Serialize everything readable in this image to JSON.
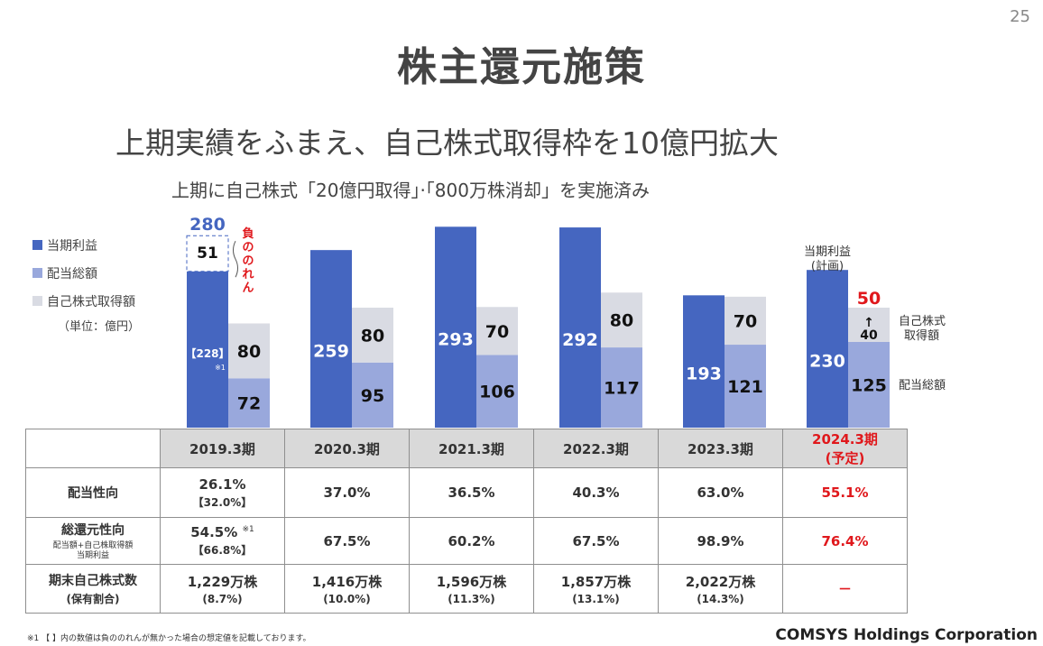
{
  "page_number": "25",
  "title": "株主還元施策",
  "headline": "上期実績をふまえ、自己株式取得枠を10億円拡大",
  "subline": "上期に自己株式「20億円取得」·「800万株消却」を実施済み",
  "legend": {
    "items": [
      {
        "label": "当期利益",
        "color": "#4566c0"
      },
      {
        "label": "配当総額",
        "color": "#99a8dc"
      },
      {
        "label": "自己株式取得額",
        "color": "#d9dbe3"
      }
    ],
    "unit": "（単位：億円）"
  },
  "chart_data": {
    "type": "bar",
    "categories": [
      "2019.3期",
      "2020.3期",
      "2021.3期",
      "2022.3期",
      "2023.3期",
      "2024.3期 (予定)"
    ],
    "series": [
      {
        "name": "当期利益",
        "values": [
          280,
          259,
          293,
          292,
          193,
          230
        ]
      },
      {
        "name": "配当総額",
        "values": [
          72,
          95,
          106,
          117,
          121,
          125
        ]
      },
      {
        "name": "自己株式取得額",
        "values": [
          80,
          80,
          70,
          80,
          70,
          50
        ]
      }
    ],
    "ylim": [
      0,
      300
    ],
    "annotations": {
      "goodwill_value": "51",
      "goodwill_label": "負ののれん",
      "adjusted_profit": "【228】",
      "adjusted_profit_note": "※1",
      "plan_profit_label": "当期利益 (計画)",
      "buyback_prev": "40",
      "buyback_arrow": "↑",
      "right_label_buyback": "自己株式 取得額",
      "right_label_dividend": "配当総額"
    }
  },
  "table": {
    "years": [
      "2019.3期",
      "2020.3期",
      "2021.3期",
      "2022.3期",
      "2023.3期"
    ],
    "plan_year": "2024.3期",
    "plan_note": "(予定)",
    "rows": {
      "payout": {
        "label": "配当性向",
        "values": [
          "26.1%",
          "37.0%",
          "36.5%",
          "40.3%",
          "63.0%",
          "55.1%"
        ],
        "first_sub": "【32.0%】"
      },
      "total_return": {
        "label": "総還元性向",
        "sub1": "配当額+自己株取得額",
        "sub2": "当期利益",
        "values": [
          "54.5%",
          "67.5%",
          "60.2%",
          "67.5%",
          "98.9%",
          "76.4%"
        ],
        "first_sub": "【66.8%】",
        "first_note": "※1"
      },
      "treasury": {
        "label": "期末自己株式数",
        "sub": "(保有割合)",
        "values": [
          "1,229万株",
          "1,416万株",
          "1,596万株",
          "1,857万株",
          "2,022万株",
          "－"
        ],
        "ratios": [
          "(8.7%)",
          "(10.0%)",
          "(11.3%)",
          "(13.1%)",
          "(14.3%)"
        ]
      }
    }
  },
  "footnote": "※1 【 】内の数値は負ののれんが無かった場合の想定値を記載しております。",
  "company": "COMSYS Holdings Corporation",
  "colors": {
    "profit": "#4566c0",
    "dividend": "#99a8dc",
    "buyback": "#d9dbe3",
    "plan": "#e0181c"
  }
}
